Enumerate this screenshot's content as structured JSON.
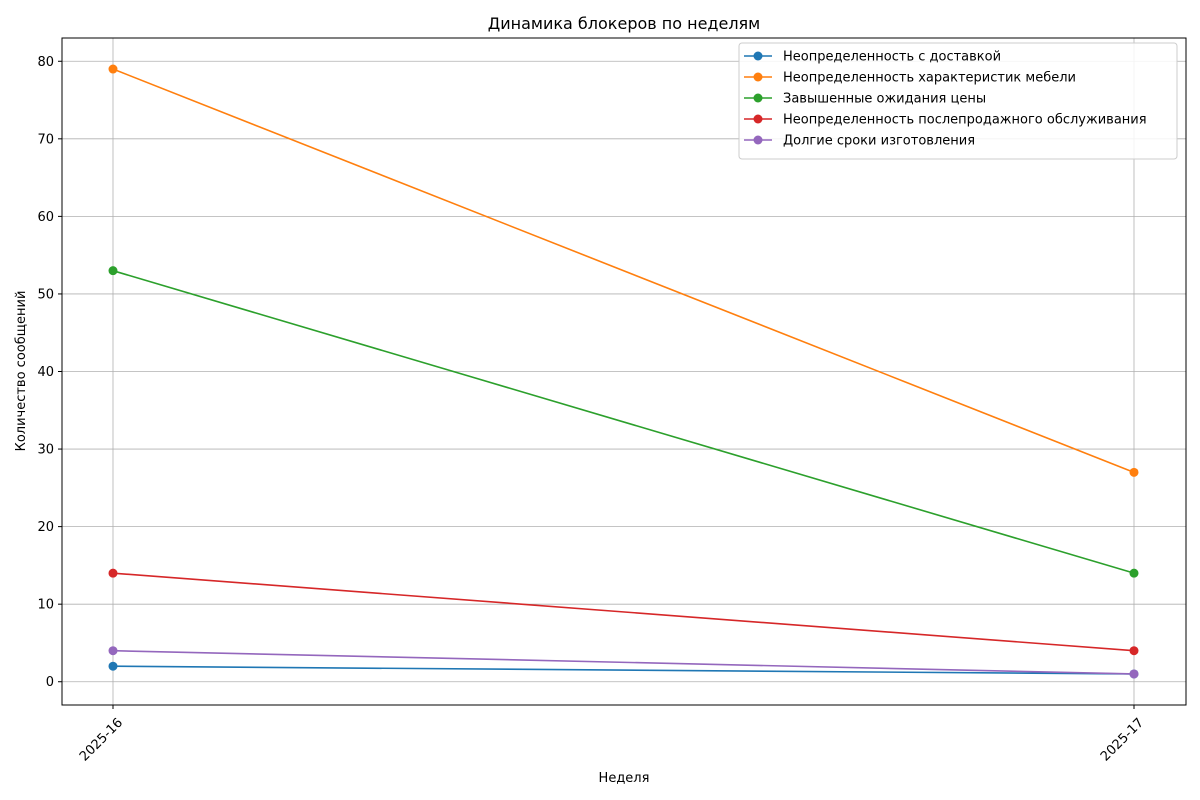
{
  "chart_data": {
    "type": "line",
    "title": "Динамика блокеров по неделям",
    "xlabel": "Неделя",
    "ylabel": "Количество сообщений",
    "categories": [
      "2025-16",
      "2025-17"
    ],
    "ylim": [
      -3,
      83
    ],
    "yticks": [
      0,
      10,
      20,
      30,
      40,
      50,
      60,
      70,
      80
    ],
    "grid": true,
    "legend_position": "top-right",
    "series": [
      {
        "name": "Неопределенность с доставкой",
        "color": "#1f77b4",
        "values": [
          2,
          1
        ]
      },
      {
        "name": "Неопределенность характеристик мебели",
        "color": "#ff7f0e",
        "values": [
          79,
          27
        ]
      },
      {
        "name": "Завышенные ожидания цены",
        "color": "#2ca02c",
        "values": [
          53,
          14
        ]
      },
      {
        "name": "Неопределенность послепродажного обслуживания",
        "color": "#d62728",
        "values": [
          14,
          4
        ]
      },
      {
        "name": "Долгие сроки изготовления",
        "color": "#9467bd",
        "values": [
          4,
          1
        ]
      }
    ]
  }
}
